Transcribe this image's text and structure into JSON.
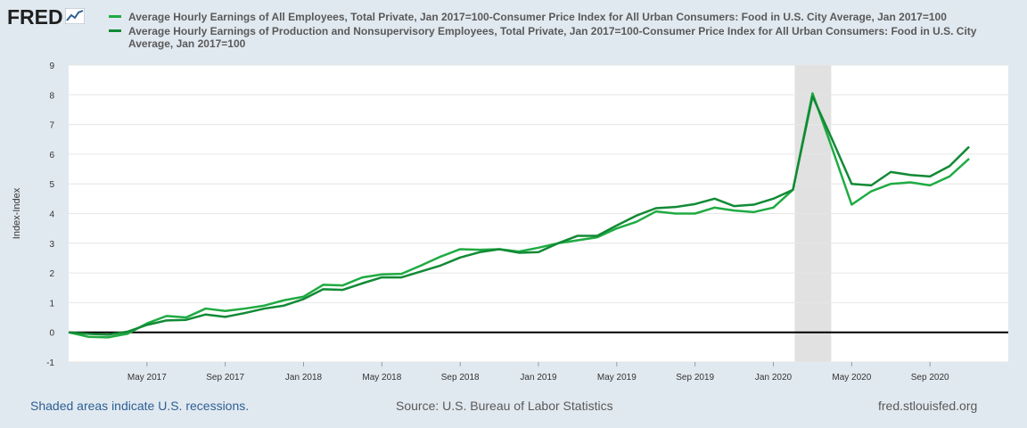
{
  "logo": {
    "text": "FRED"
  },
  "colors": {
    "background": "#e1e9f0",
    "plot_bg": "#ffffff",
    "recession": "#e1e1e1",
    "series1": "#1fab42",
    "series2": "#118a35",
    "zero_line": "#000000",
    "grid": "#ffffff"
  },
  "legend": [
    {
      "label": "Average Hourly Earnings of All Employees, Total Private, Jan 2017=100-Consumer Price Index for All Urban Consumers: Food in U.S. City Average, Jan 2017=100",
      "color": "#1fab42"
    },
    {
      "label": "Average Hourly Earnings of Production and Nonsupervisory Employees, Total Private, Jan 2017=100-Consumer Price Index for All Urban Consumers: Food in U.S. City Average, Jan 2017=100",
      "color": "#118a35"
    }
  ],
  "footer": {
    "recession_note": "Shaded areas indicate U.S. recessions.",
    "source": "Source: U.S. Bureau of Labor Statistics",
    "site": "fred.stlouisfed.org"
  },
  "chart_data": {
    "type": "line",
    "title": "",
    "xlabel": "",
    "ylabel": "Index-Index",
    "ylim": [
      -1,
      9
    ],
    "yticks": [
      -1,
      0,
      1,
      2,
      3,
      4,
      5,
      6,
      7,
      8,
      9
    ],
    "grid": true,
    "x_start": "Jan 2017",
    "x_end": "Jan 2021",
    "xticks": [
      {
        "label": "May 2017",
        "month_index": 4
      },
      {
        "label": "Sep 2017",
        "month_index": 8
      },
      {
        "label": "Jan 2018",
        "month_index": 12
      },
      {
        "label": "May 2018",
        "month_index": 16
      },
      {
        "label": "Sep 2018",
        "month_index": 20
      },
      {
        "label": "Jan 2019",
        "month_index": 24
      },
      {
        "label": "May 2019",
        "month_index": 28
      },
      {
        "label": "Sep 2019",
        "month_index": 32
      },
      {
        "label": "Jan 2020",
        "month_index": 36
      },
      {
        "label": "May 2020",
        "month_index": 40
      },
      {
        "label": "Sep 2020",
        "month_index": 44
      }
    ],
    "recessions": [
      {
        "start": "Feb 2020",
        "end": "Apr 2020",
        "start_index": 37,
        "end_index": 39
      }
    ],
    "series": [
      {
        "name": "Average Hourly Earnings of All Employees, Total Private, Jan 2017=100-Consumer Price Index for All Urban Consumers: Food in U.S. City Average, Jan 2017=100",
        "color": "#1fab42",
        "values": [
          0,
          -0.15,
          -0.17,
          -0.05,
          0.3,
          0.55,
          0.5,
          0.8,
          0.72,
          0.8,
          0.9,
          1.08,
          1.2,
          1.6,
          1.58,
          1.85,
          1.95,
          1.97,
          2.25,
          2.55,
          2.8,
          2.78,
          2.8,
          2.72,
          2.85,
          3.0,
          3.1,
          3.2,
          3.5,
          3.72,
          4.07,
          4.0,
          4.0,
          4.2,
          4.1,
          4.05,
          4.2,
          4.8,
          8.05,
          6.2,
          4.3,
          4.75,
          5.0,
          5.05,
          4.95,
          5.25,
          5.85
        ]
      },
      {
        "name": "Average Hourly Earnings of Production and Nonsupervisory Employees, Total Private, Jan 2017=100-Consumer Price Index for All Urban Consumers: Food in U.S. City Average, Jan 2017=100",
        "color": "#118a35",
        "values": [
          0,
          -0.05,
          -0.08,
          0.02,
          0.25,
          0.4,
          0.42,
          0.6,
          0.52,
          0.65,
          0.8,
          0.9,
          1.12,
          1.45,
          1.43,
          1.65,
          1.85,
          1.85,
          2.05,
          2.25,
          2.52,
          2.7,
          2.8,
          2.68,
          2.7,
          3.0,
          3.25,
          3.25,
          3.6,
          3.93,
          4.18,
          4.22,
          4.32,
          4.5,
          4.25,
          4.3,
          4.5,
          4.8,
          7.95,
          6.5,
          5.0,
          4.95,
          5.4,
          5.3,
          5.25,
          5.6,
          6.25
        ]
      }
    ]
  }
}
